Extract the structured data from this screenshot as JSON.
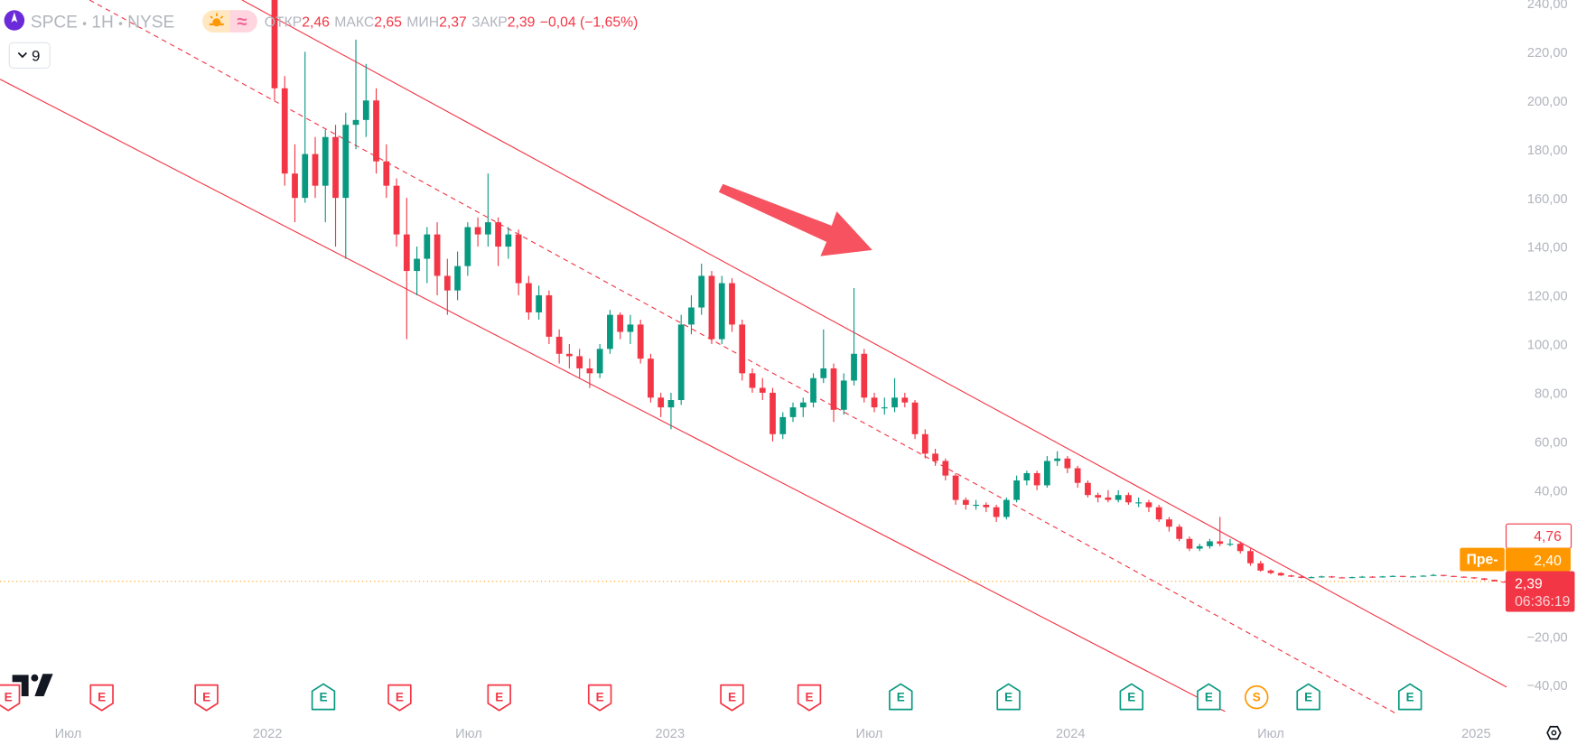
{
  "header": {
    "symbol": "SPCE",
    "interval": "1H",
    "exchange": "NYSE",
    "separator": "•",
    "session_icons": [
      "sun-icon",
      "wave-icon"
    ],
    "wave_glyph": "≈",
    "open_label": "ОТКР",
    "open_value": "2,46",
    "high_label": "МАКС",
    "high_value": "2,65",
    "low_label": "МИН",
    "low_value": "2,37",
    "close_label": "ЗАКР",
    "close_value": "2,39",
    "change": "−0,04 (−1,65%)",
    "indicators_toggle": "9"
  },
  "colors": {
    "up": "#089981",
    "down": "#f23645",
    "premarket": "#ff9800",
    "accent": "#f23645"
  },
  "price_tags": {
    "high_marker": "4,76",
    "premarket_label": "Пре-",
    "premarket_value": "2,40",
    "last_price": "2,39",
    "countdown": "06:36:19"
  },
  "events": [
    {
      "type": "E",
      "result": "miss"
    },
    {
      "type": "E",
      "result": "miss"
    },
    {
      "type": "E",
      "result": "miss"
    },
    {
      "type": "E",
      "result": "beat"
    },
    {
      "type": "E",
      "result": "miss"
    },
    {
      "type": "E",
      "result": "miss"
    },
    {
      "type": "E",
      "result": "miss"
    },
    {
      "type": "E",
      "result": "miss"
    },
    {
      "type": "E",
      "result": "miss"
    },
    {
      "type": "E",
      "result": "beat"
    },
    {
      "type": "E",
      "result": "beat"
    },
    {
      "type": "E",
      "result": "beat"
    },
    {
      "type": "E",
      "result": "beat"
    },
    {
      "type": "S",
      "result": "split"
    },
    {
      "type": "E",
      "result": "beat"
    },
    {
      "type": "E",
      "result": "beat"
    }
  ],
  "chart_data": {
    "type": "candlestick",
    "y_ticks": [
      "240,00",
      "220,00",
      "200,00",
      "180,00",
      "160,00",
      "140,00",
      "120,00",
      "100,00",
      "80,00",
      "60,00",
      "40,00",
      "−20,00",
      "−40,00"
    ],
    "ylim": [
      -40,
      240
    ],
    "x_ticks": [
      "Июл",
      "2022",
      "Июл",
      "2023",
      "Июл",
      "2024",
      "Июл",
      "2025"
    ],
    "last_price": 2.39,
    "ohlc": [
      [
        245,
        252,
        200,
        205
      ],
      [
        205,
        210,
        165,
        170
      ],
      [
        170,
        182,
        150,
        160
      ],
      [
        160,
        220,
        158,
        178
      ],
      [
        178,
        185,
        160,
        165
      ],
      [
        165,
        188,
        150,
        185
      ],
      [
        185,
        190,
        140,
        160
      ],
      [
        160,
        195,
        135,
        190
      ],
      [
        190,
        225,
        180,
        192
      ],
      [
        192,
        215,
        185,
        200
      ],
      [
        200,
        205,
        170,
        175
      ],
      [
        175,
        182,
        160,
        165
      ],
      [
        165,
        168,
        140,
        145
      ],
      [
        145,
        160,
        102,
        130
      ],
      [
        130,
        140,
        120,
        135
      ],
      [
        135,
        148,
        125,
        145
      ],
      [
        145,
        150,
        120,
        128
      ],
      [
        128,
        135,
        112,
        122
      ],
      [
        122,
        138,
        118,
        132
      ],
      [
        132,
        150,
        128,
        148
      ],
      [
        148,
        152,
        140,
        145
      ],
      [
        145,
        170,
        140,
        150
      ],
      [
        150,
        152,
        132,
        140
      ],
      [
        140,
        148,
        135,
        145
      ],
      [
        145,
        147,
        120,
        125
      ],
      [
        125,
        128,
        110,
        113
      ],
      [
        113,
        124,
        110,
        120
      ],
      [
        120,
        122,
        100,
        103
      ],
      [
        103,
        106,
        92,
        96
      ],
      [
        96,
        100,
        90,
        95
      ],
      [
        95,
        98,
        86,
        90
      ],
      [
        90,
        94,
        82,
        88
      ],
      [
        88,
        100,
        86,
        98
      ],
      [
        98,
        114,
        96,
        112
      ],
      [
        112,
        113,
        102,
        105
      ],
      [
        105,
        112,
        100,
        108
      ],
      [
        108,
        110,
        92,
        94
      ],
      [
        94,
        96,
        76,
        78
      ],
      [
        78,
        80,
        70,
        74
      ],
      [
        74,
        80,
        65,
        77
      ],
      [
        77,
        112,
        75,
        108
      ],
      [
        108,
        120,
        104,
        115
      ],
      [
        115,
        133,
        112,
        128
      ],
      [
        128,
        130,
        100,
        102
      ],
      [
        102,
        128,
        100,
        125
      ],
      [
        125,
        127,
        105,
        108
      ],
      [
        108,
        110,
        85,
        88
      ],
      [
        88,
        90,
        80,
        82
      ],
      [
        82,
        86,
        77,
        80
      ],
      [
        80,
        82,
        60,
        63
      ],
      [
        63,
        72,
        61,
        70
      ],
      [
        70,
        76,
        68,
        74
      ],
      [
        74,
        78,
        70,
        76
      ],
      [
        76,
        88,
        74,
        86
      ],
      [
        86,
        106,
        84,
        90
      ],
      [
        90,
        92,
        68,
        73
      ],
      [
        73,
        88,
        71,
        85
      ],
      [
        85,
        123,
        83,
        96
      ],
      [
        96,
        98,
        76,
        78
      ],
      [
        78,
        80,
        72,
        74
      ],
      [
        74,
        78,
        71,
        74
      ],
      [
        74,
        86,
        72,
        78
      ],
      [
        78,
        80,
        74,
        76
      ],
      [
        76,
        77,
        61,
        63
      ],
      [
        63,
        65,
        53,
        55
      ],
      [
        55,
        57,
        50,
        52
      ],
      [
        52,
        53,
        44,
        46
      ],
      [
        46,
        47,
        34,
        36
      ],
      [
        36,
        37,
        32,
        34
      ],
      [
        34,
        36,
        32,
        34
      ],
      [
        34,
        35,
        31,
        33
      ],
      [
        33,
        34,
        27,
        29
      ],
      [
        29,
        37,
        28,
        36
      ],
      [
        36,
        46,
        35,
        44
      ],
      [
        44,
        48,
        42,
        47
      ],
      [
        47,
        48,
        40,
        42
      ],
      [
        42,
        54,
        41,
        52
      ],
      [
        52,
        56,
        50,
        53
      ],
      [
        53,
        54,
        47,
        49
      ],
      [
        49,
        50,
        41,
        43
      ],
      [
        43,
        44,
        37,
        38
      ],
      [
        38,
        39,
        35,
        37
      ],
      [
        37,
        40,
        35,
        36
      ],
      [
        36,
        40,
        35,
        38
      ],
      [
        38,
        39,
        34,
        35
      ],
      [
        35,
        37,
        33,
        35
      ],
      [
        35,
        36,
        31,
        33
      ],
      [
        33,
        34,
        27,
        28
      ],
      [
        28,
        29,
        23,
        25
      ],
      [
        25,
        26,
        19,
        20
      ],
      [
        20,
        21,
        15,
        16
      ],
      [
        16,
        18,
        15,
        17
      ],
      [
        17,
        20,
        16,
        19
      ],
      [
        19,
        29,
        17,
        18
      ],
      [
        18,
        20,
        17,
        18
      ],
      [
        18,
        19,
        14,
        15
      ],
      [
        15,
        16,
        9,
        10
      ],
      [
        10,
        11,
        6.5,
        7
      ],
      [
        7,
        7.5,
        5.5,
        6
      ],
      [
        6,
        6.3,
        4.8,
        5
      ],
      [
        5,
        5.3,
        4.3,
        4.5
      ],
      [
        4.5,
        4.8,
        3.8,
        4
      ],
      [
        4,
        4.6,
        3.9,
        4.3
      ],
      [
        4.3,
        4.9,
        4.1,
        4.6
      ],
      [
        4.6,
        4.8,
        4.0,
        4.2
      ],
      [
        4.2,
        4.4,
        3.8,
        4
      ],
      [
        4,
        4.5,
        3.9,
        4.3
      ],
      [
        4.3,
        4.8,
        4.2,
        4.5
      ],
      [
        4.5,
        4.7,
        4.0,
        4.2
      ],
      [
        4.2,
        4.8,
        4.1,
        4.6
      ],
      [
        4.6,
        5.0,
        4.4,
        4.8
      ],
      [
        4.8,
        4.9,
        4.2,
        4.4
      ],
      [
        4.4,
        4.8,
        4.3,
        4.6
      ],
      [
        4.6,
        5.1,
        4.5,
        4.9
      ],
      [
        4.9,
        5.6,
        4.8,
        5.2
      ],
      [
        5.2,
        5.3,
        4.6,
        4.8
      ],
      [
        4.8,
        4.9,
        4.3,
        4.5
      ],
      [
        4.5,
        4.6,
        4.0,
        4.2
      ],
      [
        4.2,
        4.3,
        3.6,
        3.8
      ],
      [
        3.8,
        3.9,
        3.0,
        3.2
      ],
      [
        3.2,
        3.3,
        2.5,
        2.6
      ],
      [
        2.46,
        2.65,
        2.37,
        2.39
      ]
    ],
    "drawings": [
      "descending-channel",
      "down-arrow"
    ]
  }
}
